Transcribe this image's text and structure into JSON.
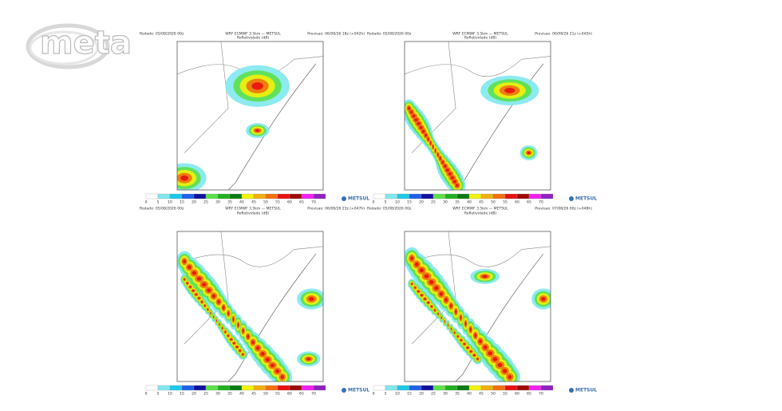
{
  "logo": "meta",
  "colorbar": {
    "labels": [
      "0",
      "5",
      "10",
      "15",
      "20",
      "25",
      "30",
      "35",
      "40",
      "45",
      "50",
      "55",
      "60",
      "65",
      "70"
    ],
    "colors": [
      "#ffffff",
      "#7fe8ef",
      "#1ec8e8",
      "#2060e8",
      "#1010a0",
      "#5ce04a",
      "#20b020",
      "#0a7a10",
      "#f2f20a",
      "#f0b010",
      "#f07010",
      "#e81010",
      "#a00808",
      "#f020f0",
      "#9020c0"
    ]
  },
  "panels": [
    {
      "run": "Rodado: 05/08/2026 00z",
      "model": "WRF ECMWF 3.5km — METSUL",
      "field": "Refletividade (dB)",
      "forecast": "Previsao: 06/08/26 18z (+042h)",
      "brand": "METSUL"
    },
    {
      "run": "Rodado: 05/08/2026 00z",
      "model": "WRF ECMWF 3.5km — METSUL",
      "field": "Refletividade (dB)",
      "forecast": "Previsao: 06/08/26 21z (+045h)",
      "brand": "METSUL"
    },
    {
      "run": "Rodado: 05/08/2026 00z",
      "model": "WRF ECMWF 3.5km — METSUL",
      "field": "Refletividade (dB)",
      "forecast": "Previsao: 06/08/26 23z (+047h)",
      "brand": "METSUL"
    },
    {
      "run": "Rodado: 05/08/2026 00z",
      "model": "WRF ECMWF 3.5km — METSUL",
      "field": "Refletividade (dB)",
      "forecast": "Previsao: 07/08/26 00z (+048h)",
      "brand": "METSUL"
    }
  ]
}
